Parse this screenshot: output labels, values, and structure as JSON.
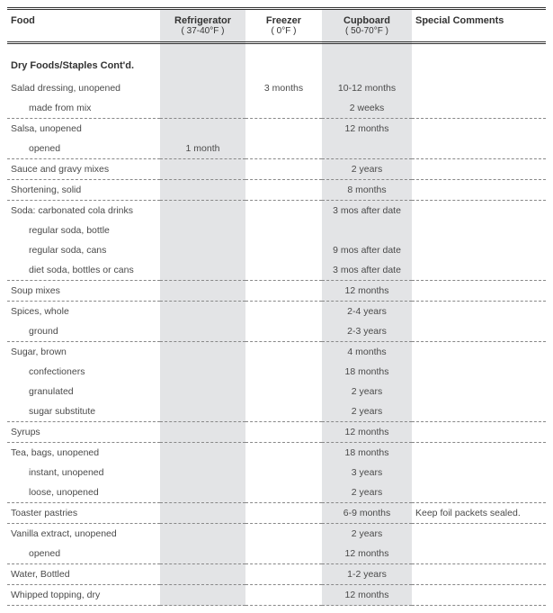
{
  "headers": {
    "food": "Food",
    "refrigerator": "Refrigerator",
    "refrigerator_sub": "( 37-40°F )",
    "freezer": "Freezer",
    "freezer_sub": "( 0°F )",
    "cupboard": "Cupboard",
    "cupboard_sub": "( 50-70°F )",
    "comments": "Special Comments"
  },
  "section_title": "Dry Foods/Staples Cont'd.",
  "rows": [
    {
      "food": "Salad dressing, unopened",
      "indent": 0,
      "ref": "",
      "frz": "3 months",
      "cup": "10-12 months",
      "com": "",
      "dash": false
    },
    {
      "food": "made from mix",
      "indent": 1,
      "ref": "",
      "frz": "",
      "cup": "2 weeks",
      "com": "",
      "dash": true
    },
    {
      "food": "Salsa, unopened",
      "indent": 0,
      "ref": "",
      "frz": "",
      "cup": "12 months",
      "com": "",
      "dash": false
    },
    {
      "food": "opened",
      "indent": 1,
      "ref": "1 month",
      "frz": "",
      "cup": "",
      "com": "",
      "dash": true
    },
    {
      "food": "Sauce and gravy mixes",
      "indent": 0,
      "ref": "",
      "frz": "",
      "cup": "2 years",
      "com": "",
      "dash": true
    },
    {
      "food": "Shortening, solid",
      "indent": 0,
      "ref": "",
      "frz": "",
      "cup": "8 months",
      "com": "",
      "dash": true
    },
    {
      "food": "Soda: carbonated cola drinks",
      "indent": 0,
      "ref": "",
      "frz": "",
      "cup": "3 mos after date",
      "com": "",
      "dash": false
    },
    {
      "food": "regular soda, bottle",
      "indent": 1,
      "ref": "",
      "frz": "",
      "cup": "",
      "com": "",
      "dash": false
    },
    {
      "food": "regular soda, cans",
      "indent": 1,
      "ref": "",
      "frz": "",
      "cup": "9 mos after date",
      "com": "",
      "dash": false
    },
    {
      "food": "diet soda, bottles or cans",
      "indent": 1,
      "ref": "",
      "frz": "",
      "cup": "3 mos after date",
      "com": "",
      "dash": true
    },
    {
      "food": "Soup mixes",
      "indent": 0,
      "ref": "",
      "frz": "",
      "cup": "12 months",
      "com": "",
      "dash": true
    },
    {
      "food": "Spices, whole",
      "indent": 0,
      "ref": "",
      "frz": "",
      "cup": "2-4 years",
      "com": "",
      "dash": false
    },
    {
      "food": "ground",
      "indent": 1,
      "ref": "",
      "frz": "",
      "cup": "2-3 years",
      "com": "",
      "dash": true
    },
    {
      "food": "Sugar, brown",
      "indent": 0,
      "ref": "",
      "frz": "",
      "cup": "4 months",
      "com": "",
      "dash": false
    },
    {
      "food": "confectioners",
      "indent": 1,
      "ref": "",
      "frz": "",
      "cup": "18 months",
      "com": "",
      "dash": false
    },
    {
      "food": "granulated",
      "indent": 1,
      "ref": "",
      "frz": "",
      "cup": "2 years",
      "com": "",
      "dash": false
    },
    {
      "food": "sugar substitute",
      "indent": 1,
      "ref": "",
      "frz": "",
      "cup": "2 years",
      "com": "",
      "dash": true
    },
    {
      "food": "Syrups",
      "indent": 0,
      "ref": "",
      "frz": "",
      "cup": "12 months",
      "com": "",
      "dash": true
    },
    {
      "food": "Tea, bags, unopened",
      "indent": 0,
      "ref": "",
      "frz": "",
      "cup": "18 months",
      "com": "",
      "dash": false
    },
    {
      "food": "instant, unopened",
      "indent": 1,
      "ref": "",
      "frz": "",
      "cup": "3 years",
      "com": "",
      "dash": false
    },
    {
      "food": "loose,  unopened",
      "indent": 1,
      "ref": "",
      "frz": "",
      "cup": "2 years",
      "com": "",
      "dash": true
    },
    {
      "food": "Toaster pastries",
      "indent": 0,
      "ref": "",
      "frz": "",
      "cup": "6-9 months",
      "com": "Keep foil packets sealed.",
      "dash": true
    },
    {
      "food": "Vanilla extract, unopened",
      "indent": 0,
      "ref": "",
      "frz": "",
      "cup": "2 years",
      "com": "",
      "dash": false
    },
    {
      "food": "opened",
      "indent": 1,
      "ref": "",
      "frz": "",
      "cup": "12 months",
      "com": "",
      "dash": true
    },
    {
      "food": "Water, Bottled",
      "indent": 0,
      "ref": "",
      "frz": "",
      "cup": "1-2 years",
      "com": "",
      "dash": true
    },
    {
      "food": "Whipped topping, dry",
      "indent": 0,
      "ref": "",
      "frz": "",
      "cup": "12 months",
      "com": "",
      "dash": true
    }
  ]
}
